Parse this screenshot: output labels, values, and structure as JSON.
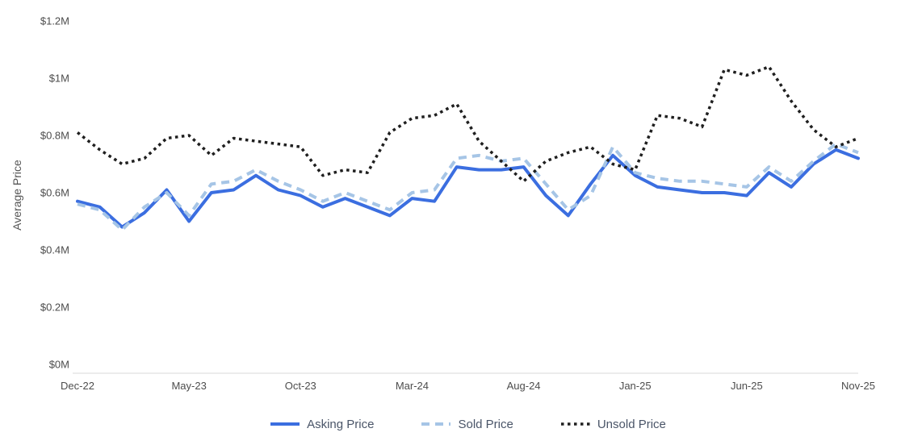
{
  "chart_data": {
    "type": "line",
    "title": "",
    "xlabel": "",
    "ylabel": "Average Price",
    "ylim": [
      0,
      1.2
    ],
    "grid": false,
    "legend_position": "bottom",
    "x": [
      "Dec-22",
      "Jan-23",
      "Feb-23",
      "Mar-23",
      "Apr-23",
      "May-23",
      "Jun-23",
      "Jul-23",
      "Aug-23",
      "Sep-23",
      "Oct-23",
      "Nov-23",
      "Dec-23",
      "Jan-24",
      "Feb-24",
      "Mar-24",
      "Apr-24",
      "May-24",
      "Jun-24",
      "Jul-24",
      "Aug-24",
      "Sep-24",
      "Oct-24",
      "Nov-24",
      "Dec-24",
      "Jan-25",
      "Feb-25",
      "Mar-25",
      "Apr-25",
      "May-25",
      "Jun-25",
      "Jul-25",
      "Aug-25",
      "Sep-25",
      "Oct-25",
      "Nov-25"
    ],
    "x_tick_indices": [
      0,
      5,
      10,
      15,
      20,
      25,
      30,
      35
    ],
    "x_tick_labels": [
      "Dec-22",
      "May-23",
      "Oct-23",
      "Mar-24",
      "Aug-24",
      "Jan-25",
      "Jun-25",
      "Nov-25"
    ],
    "y_ticks": [
      {
        "label": "$1.2M",
        "value": 1.2
      },
      {
        "label": "$1M",
        "value": 1.0
      },
      {
        "label": "$0.8M",
        "value": 0.8
      },
      {
        "label": "$0.6M",
        "value": 0.6
      },
      {
        "label": "$0.4M",
        "value": 0.4
      },
      {
        "label": "$0.2M",
        "value": 0.2
      },
      {
        "label": "$0M",
        "value": 0.0
      }
    ],
    "unit": "M USD",
    "series": [
      {
        "name": "Asking Price",
        "style": "solid",
        "color": "#3b6ee0",
        "values": [
          0.57,
          0.55,
          0.48,
          0.53,
          0.61,
          0.5,
          0.6,
          0.61,
          0.66,
          0.61,
          0.59,
          0.55,
          0.58,
          0.55,
          0.52,
          0.58,
          0.57,
          0.69,
          0.68,
          0.68,
          0.69,
          0.59,
          0.52,
          0.63,
          0.73,
          0.66,
          0.62,
          0.61,
          0.6,
          0.6,
          0.59,
          0.67,
          0.62,
          0.7,
          0.75,
          0.72
        ]
      },
      {
        "name": "Sold Price",
        "style": "dashed",
        "color": "#a6c5e6",
        "values": [
          0.56,
          0.54,
          0.47,
          0.55,
          0.6,
          0.52,
          0.63,
          0.64,
          0.68,
          0.64,
          0.61,
          0.57,
          0.6,
          0.57,
          0.54,
          0.6,
          0.61,
          0.72,
          0.73,
          0.71,
          0.72,
          0.63,
          0.54,
          0.59,
          0.76,
          0.67,
          0.65,
          0.64,
          0.64,
          0.63,
          0.62,
          0.69,
          0.64,
          0.71,
          0.77,
          0.74
        ]
      },
      {
        "name": "Unsold Price",
        "style": "dotted",
        "color": "#1f1f1f",
        "values": [
          0.81,
          0.75,
          0.7,
          0.72,
          0.79,
          0.8,
          0.73,
          0.79,
          0.78,
          0.77,
          0.76,
          0.66,
          0.68,
          0.67,
          0.81,
          0.86,
          0.87,
          0.91,
          0.78,
          0.71,
          0.64,
          0.71,
          0.74,
          0.76,
          0.7,
          0.68,
          0.87,
          0.86,
          0.83,
          1.03,
          1.01,
          1.04,
          0.92,
          0.82,
          0.76,
          0.79
        ]
      }
    ]
  }
}
